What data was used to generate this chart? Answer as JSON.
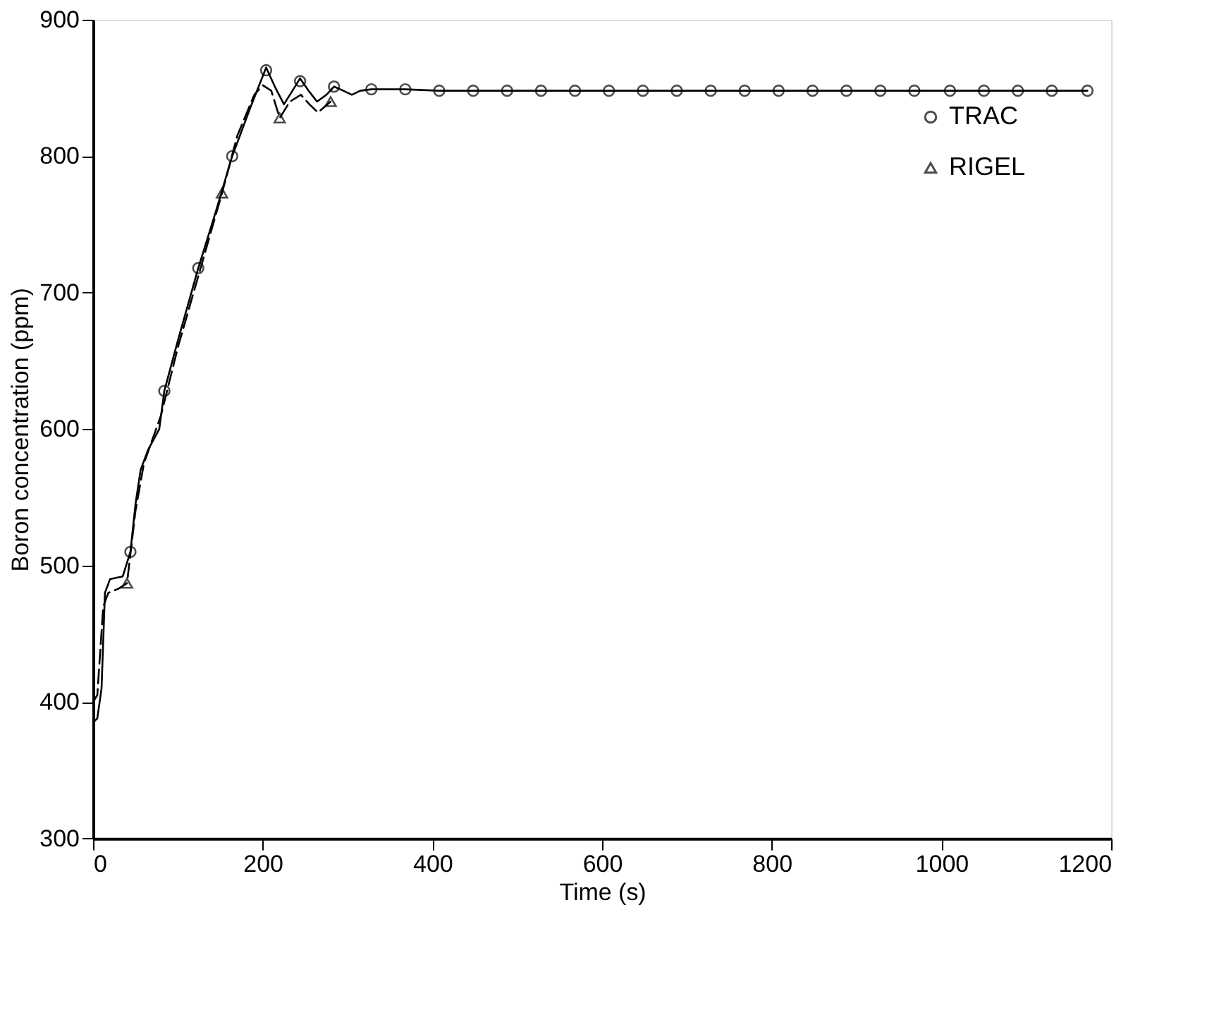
{
  "chart_data": {
    "type": "line",
    "xlabel": "Time (s)",
    "ylabel": "Boron concentration (ppm)",
    "xlim": [
      0,
      1200
    ],
    "ylim": [
      300,
      900
    ],
    "xticks": [
      0,
      200,
      400,
      600,
      800,
      1000,
      1200
    ],
    "yticks": [
      300,
      400,
      500,
      600,
      700,
      800,
      900
    ],
    "grid": false,
    "legend": "top right",
    "series": [
      {
        "line_style": "solid",
        "marker": "none",
        "color": "#000000",
        "x": [
          0,
          5,
          10,
          14,
          20,
          35,
          44,
          50,
          56,
          65,
          78,
          84,
          100,
          124,
          144,
          164,
          185,
          204,
          215,
          225,
          235,
          244,
          254,
          264,
          275,
          284,
          295,
          305,
          315,
          328,
          368,
          408,
          500,
          600,
          800,
          1000,
          1172
        ],
        "values": [
          385,
          388,
          410,
          480,
          490,
          492,
          510,
          545,
          570,
          585,
          600,
          628,
          665,
          718,
          758,
          800,
          835,
          865,
          850,
          838,
          848,
          857,
          848,
          840,
          845,
          851,
          848,
          845,
          848,
          849,
          849,
          848,
          848,
          848,
          848,
          848,
          848
        ]
      },
      {
        "line_style": "dashed",
        "marker": "none",
        "color": "#000000",
        "x": [
          0,
          5,
          12,
          18,
          30,
          40,
          50,
          60,
          80,
          100,
          124,
          152,
          170,
          190,
          200,
          210,
          220,
          232,
          245,
          255,
          265,
          280
        ],
        "values": [
          400,
          405,
          470,
          480,
          483,
          487,
          540,
          575,
          610,
          660,
          712,
          773,
          815,
          845,
          852,
          848,
          828,
          840,
          845,
          838,
          832,
          840
        ]
      },
      {
        "name": "TRAC",
        "type": "scatter",
        "marker": "circle",
        "color": "#000000",
        "x": [
          44,
          84,
          124,
          164,
          204,
          244,
          284,
          328,
          368,
          408,
          448,
          488,
          528,
          568,
          608,
          648,
          688,
          728,
          768,
          808,
          848,
          888,
          928,
          968,
          1010,
          1050,
          1090,
          1130,
          1172
        ],
        "values": [
          510,
          628,
          718,
          800,
          863,
          855,
          851,
          849,
          849,
          848,
          848,
          848,
          848,
          848,
          848,
          848,
          848,
          848,
          848,
          848,
          848,
          848,
          848,
          848,
          848,
          848,
          848,
          848,
          848
        ]
      },
      {
        "name": "RIGEL",
        "type": "scatter",
        "marker": "triangle",
        "color": "#000000",
        "x": [
          40,
          152,
          220,
          280
        ],
        "values": [
          487,
          773,
          828,
          840
        ]
      }
    ]
  }
}
